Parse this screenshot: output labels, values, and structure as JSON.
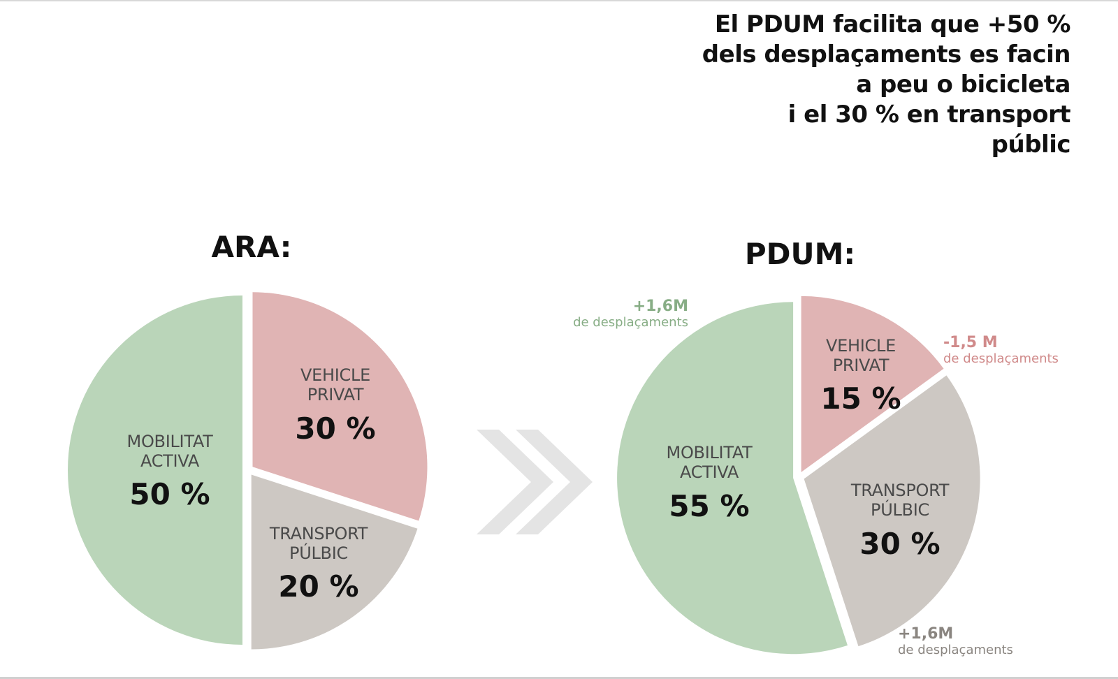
{
  "headline": {
    "lines": [
      "El PDUM facilita que +50 %",
      "dels desplaçaments es facin",
      "a peu o bicicleta",
      "i el 30 % en transport",
      "públic"
    ]
  },
  "colors": {
    "mobilitat_activa": "#bad5b9",
    "vehicle_privat": "#e0b4b4",
    "transport_public": "#cdc8c3",
    "arrow": "#e4e4e4",
    "anno_green": "#87ad85",
    "anno_red": "#d08a8a",
    "anno_gray": "#8a8580"
  },
  "chart_data": [
    {
      "type": "pie",
      "title": "ARA:",
      "slices": [
        {
          "key": "vehicle_privat",
          "label_lines": [
            "VEHICLE",
            "PRIVAT"
          ],
          "value": 30,
          "value_label": "30 %"
        },
        {
          "key": "transport_public",
          "label_lines": [
            "TRANSPORT",
            "PÚLBIC"
          ],
          "value": 20,
          "value_label": "20 %"
        },
        {
          "key": "mobilitat_activa",
          "label_lines": [
            "MOBILITAT",
            "ACTIVA"
          ],
          "value": 50,
          "value_label": "50 %"
        }
      ]
    },
    {
      "type": "pie",
      "title": "PDUM:",
      "slices": [
        {
          "key": "vehicle_privat",
          "label_lines": [
            "VEHICLE",
            "PRIVAT"
          ],
          "value": 15,
          "value_label": "15 %"
        },
        {
          "key": "transport_public",
          "label_lines": [
            "TRANSPORT",
            "PÚLBIC"
          ],
          "value": 30,
          "value_label": "30 %"
        },
        {
          "key": "mobilitat_activa",
          "label_lines": [
            "MOBILITAT",
            "ACTIVA"
          ],
          "value": 55,
          "value_label": "55 %"
        }
      ],
      "annotations": [
        {
          "key": "mobilitat_activa",
          "value": "+1,6M",
          "text": "de desplaçaments",
          "color": "anno_green"
        },
        {
          "key": "vehicle_privat",
          "value": "-1,5 M",
          "text": "de desplaçaments",
          "color": "anno_red"
        },
        {
          "key": "transport_public",
          "value": "+1,6M",
          "text": "de desplaçaments",
          "color": "anno_gray"
        }
      ]
    }
  ]
}
